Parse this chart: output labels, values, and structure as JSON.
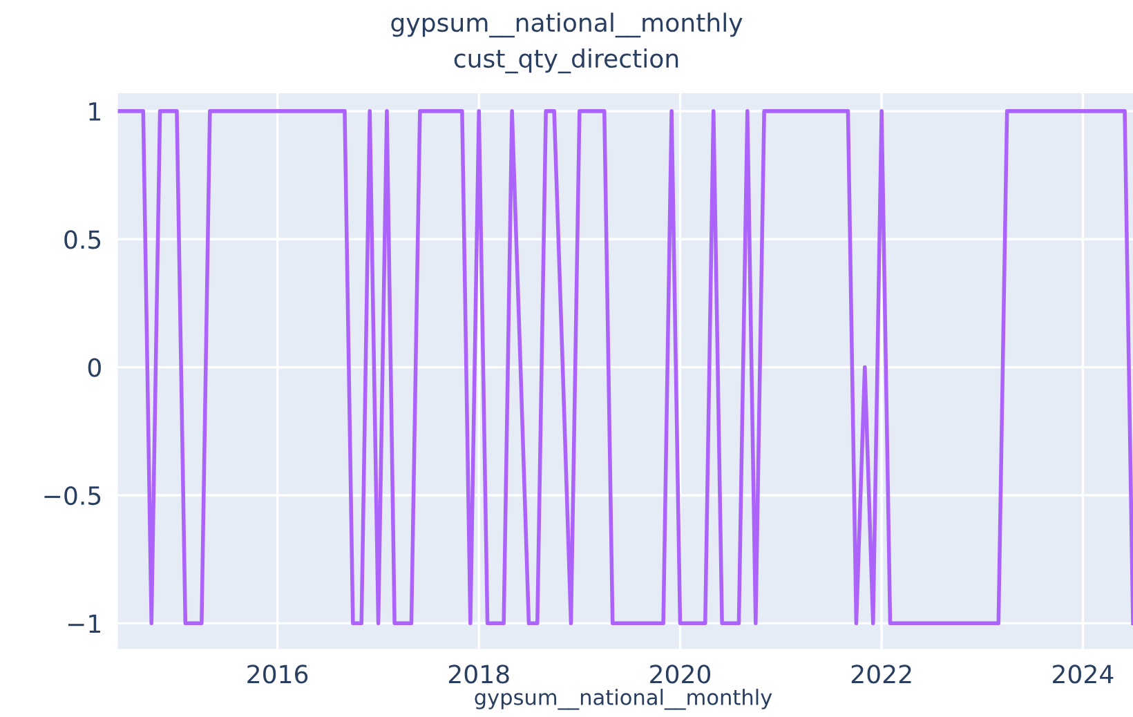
{
  "chart_data": {
    "type": "line",
    "title": "gypsum__national__monthly",
    "subtitle": "cust_qty_direction",
    "xlabel": "gypsum__national__monthly",
    "x": [
      "2014-06",
      "2014-07",
      "2014-08",
      "2014-09",
      "2014-10",
      "2014-11",
      "2014-12",
      "2015-01",
      "2015-02",
      "2015-03",
      "2015-04",
      "2015-05",
      "2015-06",
      "2015-07",
      "2015-08",
      "2015-09",
      "2015-10",
      "2015-11",
      "2015-12",
      "2016-01",
      "2016-02",
      "2016-03",
      "2016-04",
      "2016-05",
      "2016-06",
      "2016-07",
      "2016-08",
      "2016-09",
      "2016-10",
      "2016-11",
      "2016-12",
      "2017-01",
      "2017-02",
      "2017-03",
      "2017-04",
      "2017-05",
      "2017-06",
      "2017-07",
      "2017-08",
      "2017-09",
      "2017-10",
      "2017-11",
      "2017-12",
      "2018-01",
      "2018-02",
      "2018-03",
      "2018-04",
      "2018-05",
      "2018-06",
      "2018-07",
      "2018-08",
      "2018-09",
      "2018-10",
      "2018-11",
      "2018-12",
      "2019-01",
      "2019-02",
      "2019-03",
      "2019-04",
      "2019-05",
      "2019-06",
      "2019-07",
      "2019-08",
      "2019-09",
      "2019-10",
      "2019-11",
      "2019-12",
      "2020-01",
      "2020-02",
      "2020-03",
      "2020-04",
      "2020-05",
      "2020-06",
      "2020-07",
      "2020-08",
      "2020-09",
      "2020-10",
      "2020-11",
      "2020-12",
      "2021-01",
      "2021-02",
      "2021-03",
      "2021-04",
      "2021-05",
      "2021-06",
      "2021-07",
      "2021-08",
      "2021-09",
      "2021-10",
      "2021-11",
      "2021-12",
      "2022-01",
      "2022-02",
      "2022-03",
      "2022-04",
      "2022-05",
      "2022-06",
      "2022-07",
      "2022-08",
      "2022-09",
      "2022-10",
      "2022-11",
      "2022-12",
      "2023-01",
      "2023-02",
      "2023-03",
      "2023-04",
      "2023-05",
      "2023-06",
      "2023-07",
      "2023-08",
      "2023-09",
      "2023-10",
      "2023-11",
      "2023-12",
      "2024-01",
      "2024-02",
      "2024-03",
      "2024-04",
      "2024-05",
      "2024-06",
      "2024-07"
    ],
    "series": [
      {
        "color": "#ab63fa",
        "values": [
          1,
          1,
          1,
          1,
          -1,
          1,
          1,
          1,
          -1,
          -1,
          -1,
          1,
          1,
          1,
          1,
          1,
          1,
          1,
          1,
          1,
          1,
          1,
          1,
          1,
          1,
          1,
          1,
          1,
          -1,
          -1,
          1,
          -1,
          1,
          -1,
          -1,
          -1,
          1,
          1,
          1,
          1,
          1,
          1,
          -1,
          1,
          -1,
          -1,
          -1,
          1,
          0,
          -1,
          -1,
          1,
          1,
          0,
          -1,
          1,
          1,
          1,
          1,
          -1,
          -1,
          -1,
          -1,
          -1,
          -1,
          -1,
          1,
          -1,
          -1,
          -1,
          -1,
          1,
          -1,
          -1,
          -1,
          1,
          -1,
          1,
          1,
          1,
          1,
          1,
          1,
          1,
          1,
          1,
          1,
          1,
          -1,
          0,
          -1,
          1,
          -1,
          -1,
          -1,
          -1,
          -1,
          -1,
          -1,
          -1,
          -1,
          -1,
          -1,
          -1,
          -1,
          -1,
          1,
          1,
          1,
          1,
          1,
          1,
          1,
          1,
          1,
          1,
          1,
          1,
          1,
          1,
          1,
          -1
        ]
      }
    ],
    "xlim": [
      "2014-06",
      "2024-07"
    ],
    "xticks": [
      {
        "value": "2016-01",
        "label": "2016"
      },
      {
        "value": "2018-01",
        "label": "2018"
      },
      {
        "value": "2020-01",
        "label": "2020"
      },
      {
        "value": "2022-01",
        "label": "2022"
      },
      {
        "value": "2024-01",
        "label": "2024"
      }
    ],
    "ylim": [
      -1.1,
      1.07
    ],
    "yticks": [
      {
        "value": -1,
        "label": "−1"
      },
      {
        "value": -0.5,
        "label": "−0.5"
      },
      0,
      0.5,
      1
    ],
    "grid": true,
    "line_style": "solid",
    "marker": "none"
  }
}
